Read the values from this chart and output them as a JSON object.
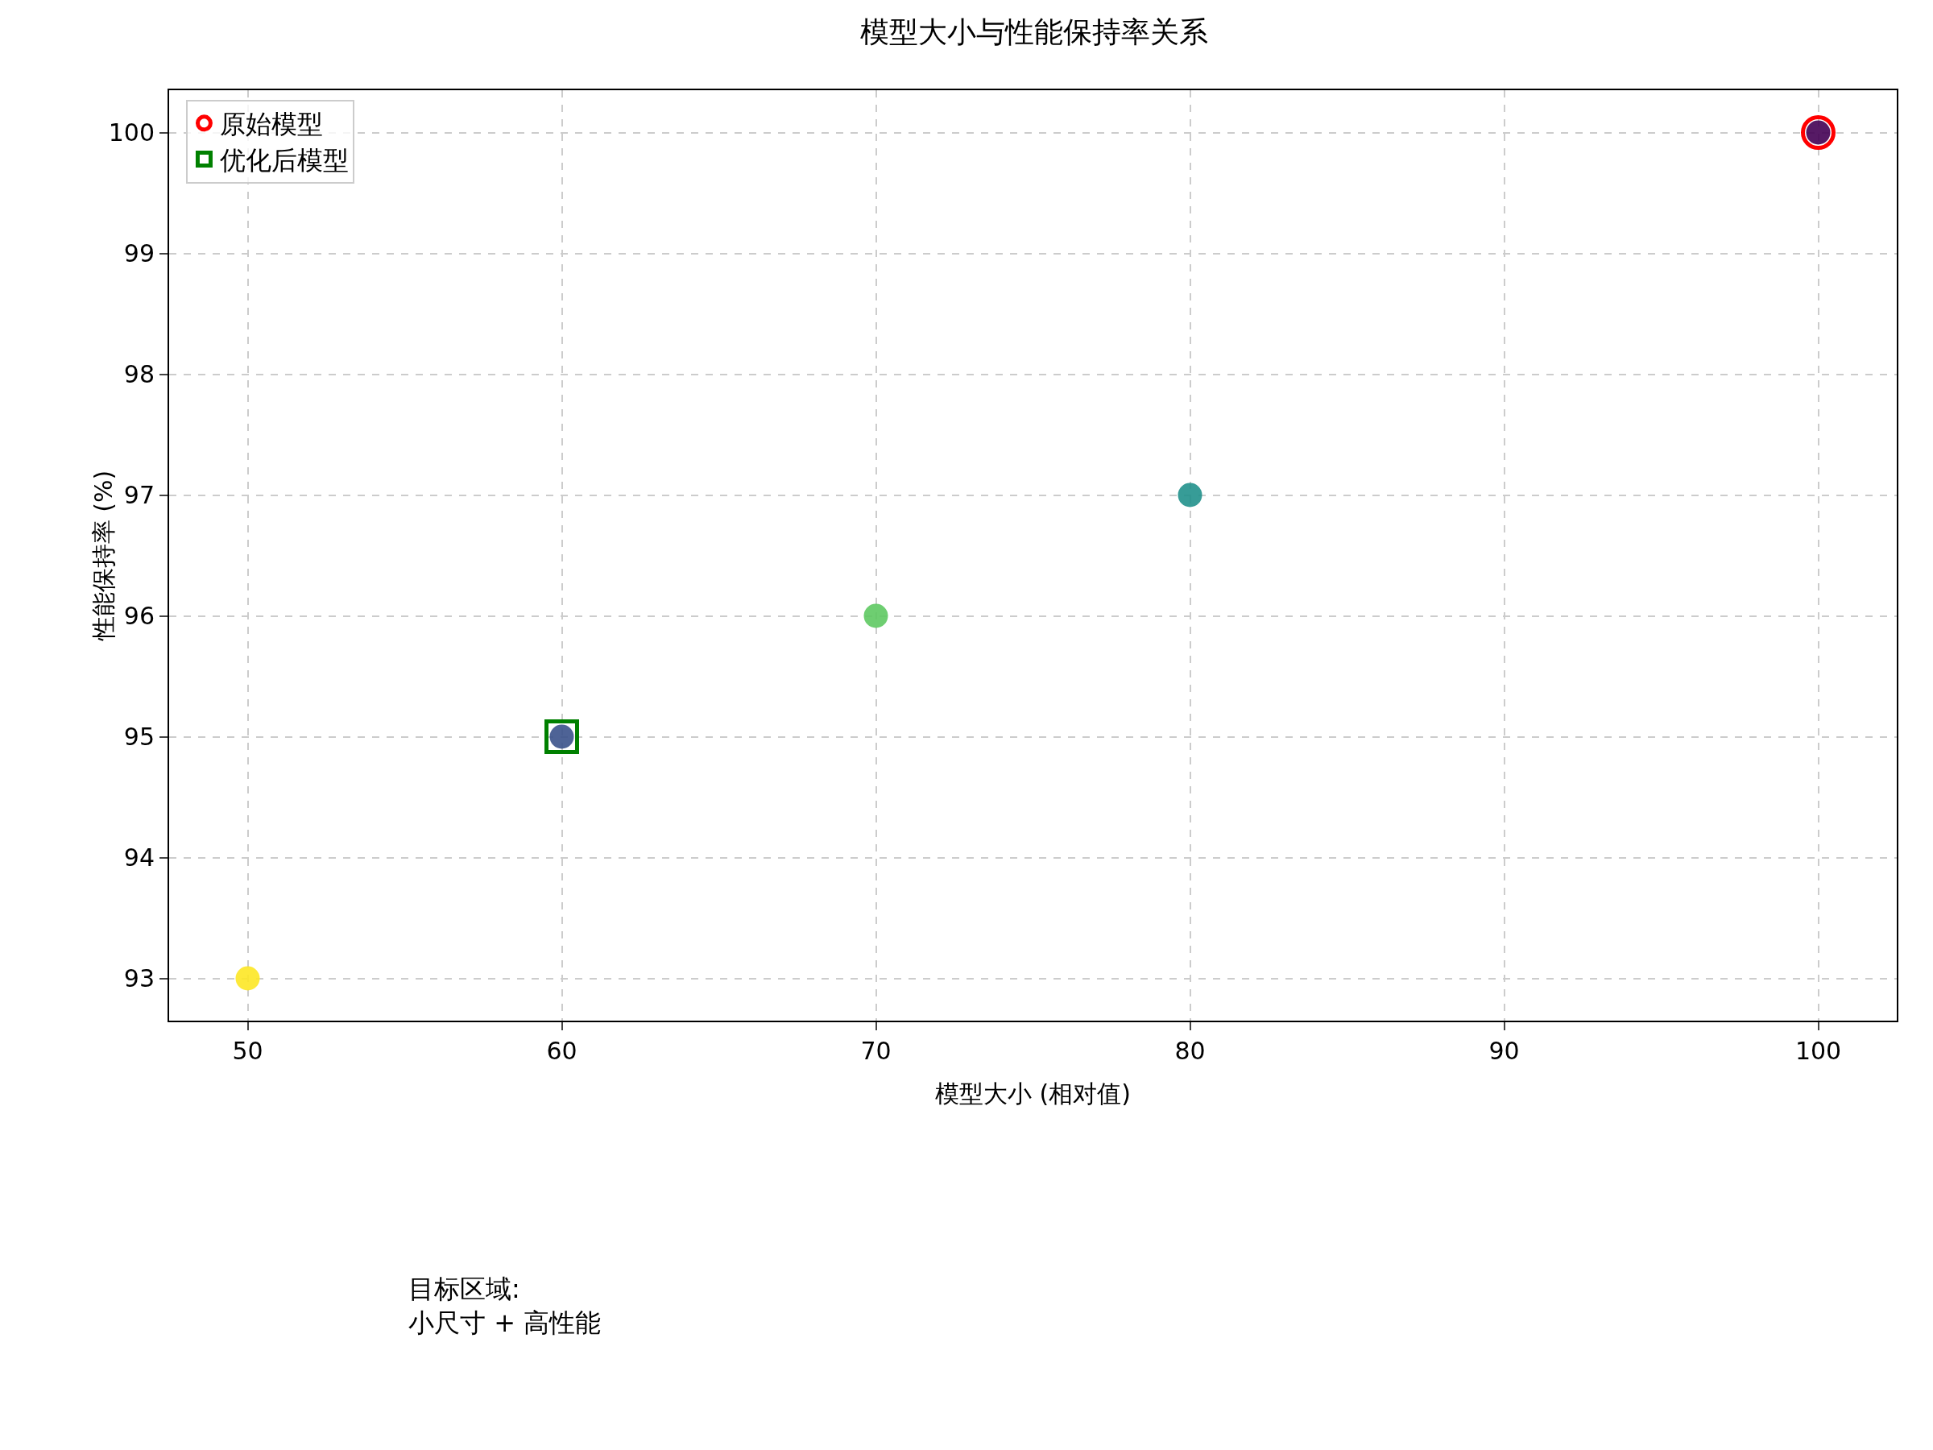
{
  "chart_data": {
    "type": "scatter",
    "title": "模型大小与性能保持率关系",
    "xlabel": "模型大小 (相对值)",
    "ylabel": "性能保持率 (%)",
    "xlim": [
      47.5,
      102.5
    ],
    "ylim": [
      92.65,
      100.35
    ],
    "xticks": [
      50,
      60,
      70,
      80,
      90,
      100
    ],
    "yticks": [
      93,
      94,
      95,
      96,
      97,
      98,
      99,
      100
    ],
    "grid": true,
    "legend": "top left",
    "series": [
      {
        "x": [
          100,
          80,
          70,
          60,
          50
        ],
        "values": [
          100,
          97,
          96,
          95,
          93
        ],
        "colors": [
          "#440154",
          "#21918c",
          "#5ec962",
          "#3b528b",
          "#fde725"
        ],
        "marker": "circle"
      },
      {
        "name": "原始模型",
        "x": [
          100
        ],
        "values": [
          100
        ],
        "color": "#ff0000",
        "marker": "circle"
      },
      {
        "name": "优化后模型",
        "x": [
          60
        ],
        "values": [
          95
        ],
        "color": "#008000",
        "marker": "square"
      }
    ],
    "annotations": [
      "目标区域:\n小尺寸 + 高性能"
    ]
  }
}
